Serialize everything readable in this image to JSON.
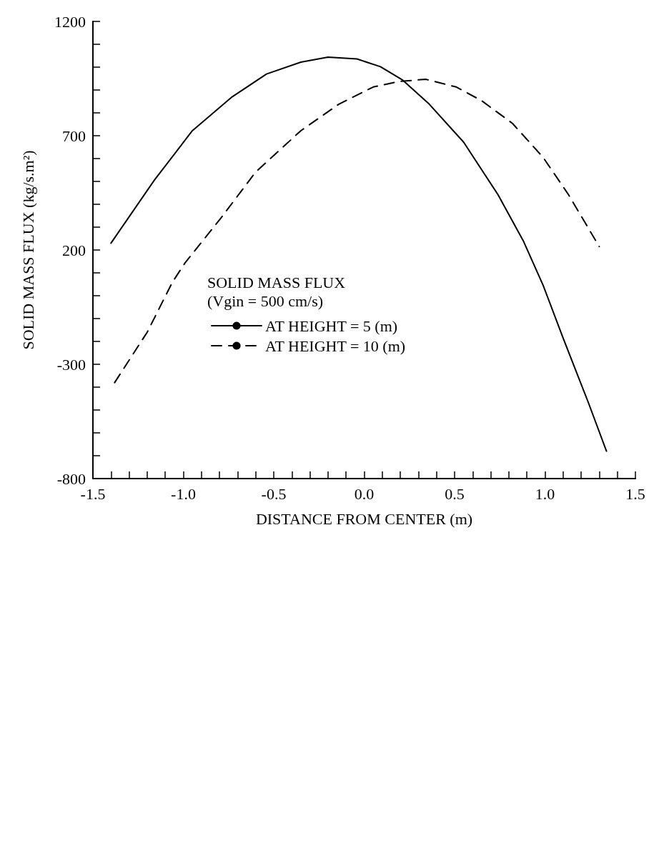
{
  "chart_data": {
    "type": "line",
    "xlabel": "DISTANCE FROM CENTER (m)",
    "ylabel": "SOLID MASS FLUX (kg/s.m²)",
    "legend_title": "SOLID MASS FLUX\n(Vgin = 500 cm/s)",
    "legend": "bottom",
    "marker": "none",
    "grid": false,
    "xlim": [
      -1.5,
      1.5
    ],
    "ylim": [
      -800,
      1200
    ],
    "xticks": [
      {
        "value": -1.5,
        "label": "-1.5"
      },
      {
        "value": -1.4,
        "label": null
      },
      {
        "value": -1.3,
        "label": null
      },
      {
        "value": -1.2,
        "label": null
      },
      {
        "value": -1.1,
        "label": null
      },
      {
        "value": -1,
        "label": "-1.0"
      },
      {
        "value": -0.9,
        "label": null
      },
      {
        "value": -0.8,
        "label": null
      },
      {
        "value": -0.7,
        "label": null
      },
      {
        "value": -0.6,
        "label": null
      },
      {
        "value": -0.5,
        "label": "-0.5"
      },
      {
        "value": -0.4,
        "label": null
      },
      {
        "value": -0.3,
        "label": null
      },
      {
        "value": -0.2,
        "label": null
      },
      {
        "value": -0.1,
        "label": null
      },
      {
        "value": 0,
        "label": "0.0"
      },
      {
        "value": 0.1,
        "label": null
      },
      {
        "value": 0.2,
        "label": null
      },
      {
        "value": 0.3,
        "label": null
      },
      {
        "value": 0.4,
        "label": null
      },
      {
        "value": 0.5,
        "label": "0.5"
      },
      {
        "value": 0.6,
        "label": null
      },
      {
        "value": 0.7,
        "label": null
      },
      {
        "value": 0.8,
        "label": null
      },
      {
        "value": 0.9,
        "label": null
      },
      {
        "value": 1,
        "label": "1.0"
      },
      {
        "value": 1.1,
        "label": null
      },
      {
        "value": 1.2,
        "label": null
      },
      {
        "value": 1.3,
        "label": null
      },
      {
        "value": 1.4,
        "label": null
      },
      {
        "value": 1.5,
        "label": "1.5"
      }
    ],
    "yticks": [
      -800,
      {
        "value": -700,
        "label": null
      },
      {
        "value": -600,
        "label": null
      },
      {
        "value": -500,
        "label": null
      },
      {
        "value": -400,
        "label": null
      },
      -300,
      {
        "value": -200,
        "label": null
      },
      {
        "value": -100,
        "label": null
      },
      {
        "value": 0,
        "label": null
      },
      {
        "value": 100,
        "label": null
      },
      200,
      {
        "value": 300,
        "label": null
      },
      {
        "value": 400,
        "label": null
      },
      {
        "value": 500,
        "label": null
      },
      {
        "value": 600,
        "label": null
      },
      700,
      {
        "value": 800,
        "label": null
      },
      {
        "value": 900,
        "label": null
      },
      {
        "value": 1000,
        "label": null
      },
      {
        "value": 1100,
        "label": null
      },
      1200
    ],
    "series": [
      {
        "name": "AT HEIGHT = 5 (m)",
        "color": "#000000",
        "line_style": "solid",
        "x": [
          -1.4,
          -1.16,
          -0.95,
          -0.73,
          -0.54,
          -0.35,
          -0.2,
          -0.04,
          0.09,
          0.21,
          0.36,
          0.55,
          0.74,
          0.88,
          0.99,
          1.1,
          1.24,
          1.34
        ],
        "values": [
          230,
          506,
          722,
          870,
          970,
          1022,
          1044,
          1036,
          1002,
          945,
          838,
          672,
          442,
          240,
          45,
          -185,
          -468,
          -680
        ]
      },
      {
        "name": "AT HEIGHT = 10 (m)",
        "color": "#000000",
        "line_style": "dashed",
        "x": [
          -1.38,
          -1.2,
          -1.06,
          -0.99,
          -0.79,
          -0.6,
          -0.35,
          -0.14,
          0.05,
          0.19,
          0.34,
          0.51,
          0.65,
          0.82,
          0.99,
          1.13,
          1.3
        ],
        "values": [
          -380,
          -160,
          60,
          144,
          342,
          541,
          722,
          838,
          913,
          937,
          947,
          913,
          853,
          754,
          605,
          442,
          215
        ]
      }
    ]
  }
}
